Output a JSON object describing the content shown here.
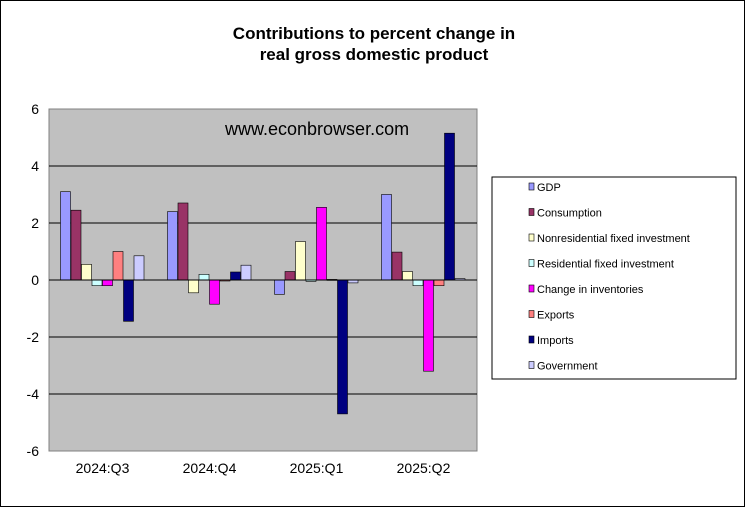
{
  "chart_data": {
    "type": "bar",
    "title_lines": [
      "Contributions to percent change in",
      "real gross domestic product"
    ],
    "watermark": "www.econbrowser.com",
    "categories": [
      "2024:Q3",
      "2024:Q4",
      "2025:Q1",
      "2025:Q2"
    ],
    "ylim": [
      -6,
      6
    ],
    "yticks": [
      "6",
      "4",
      "2",
      "0",
      "-2",
      "-4",
      "-6"
    ],
    "ytick_values": [
      6,
      4,
      2,
      0,
      -2,
      -4,
      -6
    ],
    "grid": true,
    "legend_position": "right",
    "series": [
      {
        "name": "GDP",
        "color": "#9999ff",
        "values": [
          3.1,
          2.4,
          -0.5,
          3.0
        ]
      },
      {
        "name": "Consumption",
        "color": "#993366",
        "values": [
          2.45,
          2.7,
          0.3,
          0.98
        ]
      },
      {
        "name": "Nonresidential fixed investment",
        "color": "#ffffcc",
        "values": [
          0.55,
          -0.45,
          1.35,
          0.3
        ]
      },
      {
        "name": "Residential fixed investment",
        "color": "#ccffff",
        "values": [
          -0.2,
          0.2,
          -0.05,
          -0.2
        ]
      },
      {
        "name": "Change in inventories",
        "color": "#ff00ff",
        "values": [
          -0.2,
          -0.85,
          2.55,
          -3.2
        ]
      },
      {
        "name": "Exports",
        "color": "#ff8080",
        "values": [
          1.0,
          -0.02,
          0.02,
          -0.2
        ]
      },
      {
        "name": "Imports",
        "color": "#000080",
        "values": [
          -1.45,
          0.28,
          -4.7,
          5.15
        ]
      },
      {
        "name": "Government",
        "color": "#ccccff",
        "values": [
          0.85,
          0.52,
          -0.1,
          0.05
        ]
      }
    ]
  }
}
